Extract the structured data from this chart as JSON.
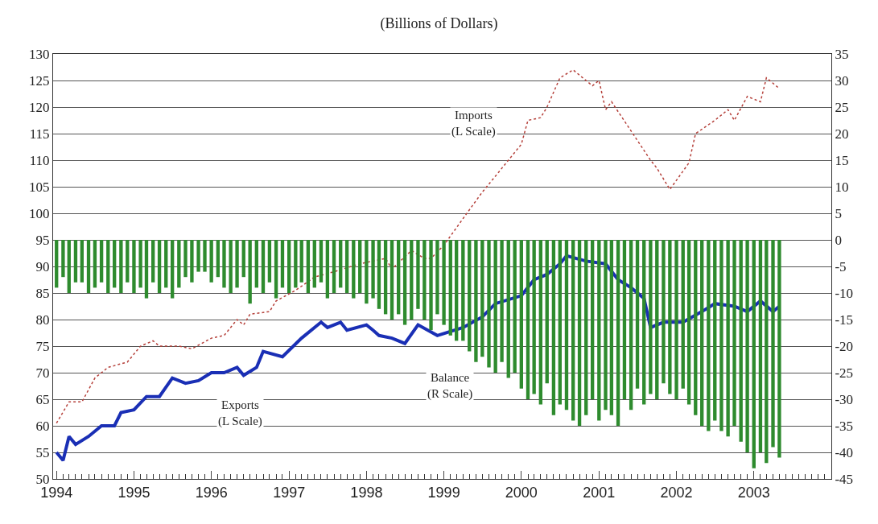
{
  "chart_data": {
    "type": "line",
    "title": "(Billions of Dollars)",
    "xlim": [
      "1993-12-16",
      "2004-01-01"
    ],
    "xticks": [
      "1994",
      "1995",
      "1996",
      "1997",
      "1998",
      "1999",
      "2000",
      "2001",
      "2002",
      "2003"
    ],
    "ylim": [
      50,
      130
    ],
    "yticks": [
      50,
      55,
      60,
      65,
      70,
      75,
      80,
      85,
      90,
      95,
      100,
      105,
      110,
      115,
      120,
      125,
      130
    ],
    "y2lim": [
      -45,
      35
    ],
    "y2ticks": [
      -45,
      -40,
      -35,
      -30,
      -25,
      -20,
      -15,
      -10,
      -5,
      0,
      5,
      10,
      15,
      20,
      25,
      30,
      35
    ],
    "grid": "y",
    "annotations": [
      "Imports\n(L Scale)",
      "Exports\n(L Scale)",
      "Balance\n(R Scale)"
    ],
    "series": [
      {
        "type": "bar",
        "axis": "y2",
        "color": "#2e8b2e",
        "x": [
          "1994-01",
          "1994-02",
          "1994-03",
          "1994-04",
          "1994-05",
          "1994-06",
          "1994-07",
          "1994-08",
          "1994-09",
          "1994-10",
          "1994-11",
          "1994-12",
          "1995-01",
          "1995-02",
          "1995-03",
          "1995-04",
          "1995-05",
          "1995-06",
          "1995-07",
          "1995-08",
          "1995-09",
          "1995-10",
          "1995-11",
          "1995-12",
          "1996-01",
          "1996-02",
          "1996-03",
          "1996-04",
          "1996-05",
          "1996-06",
          "1996-07",
          "1996-08",
          "1996-09",
          "1996-10",
          "1996-11",
          "1996-12",
          "1997-01",
          "1997-02",
          "1997-03",
          "1997-04",
          "1997-05",
          "1997-06",
          "1997-07",
          "1997-08",
          "1997-09",
          "1997-10",
          "1997-11",
          "1997-12",
          "1998-01",
          "1998-02",
          "1998-03",
          "1998-04",
          "1998-05",
          "1998-06",
          "1998-07",
          "1998-08",
          "1998-09",
          "1998-10",
          "1998-11",
          "1998-12",
          "1999-01",
          "1999-02",
          "1999-03",
          "1999-04",
          "1999-05",
          "1999-06",
          "1999-07",
          "1999-08",
          "1999-09",
          "1999-10",
          "1999-11",
          "1999-12",
          "2000-01",
          "2000-02",
          "2000-03",
          "2000-04",
          "2000-05",
          "2000-06",
          "2000-07",
          "2000-08",
          "2000-09",
          "2000-10",
          "2000-11",
          "2000-12",
          "2001-01",
          "2001-02",
          "2001-03",
          "2001-04",
          "2001-05",
          "2001-06",
          "2001-07",
          "2001-08",
          "2001-09",
          "2001-10",
          "2001-11",
          "2001-12",
          "2002-01",
          "2002-02",
          "2002-03",
          "2002-04",
          "2002-05",
          "2002-06",
          "2002-07",
          "2002-08",
          "2002-09",
          "2002-10",
          "2002-11",
          "2002-12",
          "2003-01",
          "2003-02",
          "2003-03",
          "2003-04",
          "2003-05"
        ],
        "values": [
          -9,
          -7,
          -10,
          -8,
          -8,
          -10,
          -9,
          -8,
          -10,
          -9,
          -10,
          -8,
          -10,
          -9,
          -11,
          -8,
          -10,
          -9,
          -11,
          -9,
          -7,
          -8,
          -6,
          -6,
          -8,
          -7,
          -9,
          -10,
          -9,
          -7,
          -12,
          -9,
          -10,
          -8,
          -11,
          -9,
          -10,
          -9,
          -8,
          -10,
          -9,
          -8,
          -11,
          -10,
          -9,
          -10,
          -11,
          -10,
          -12,
          -11,
          -13,
          -14,
          -15,
          -14,
          -16,
          -15,
          -13,
          -15,
          -17,
          -14,
          -16,
          -18,
          -19,
          -19,
          -21,
          -23,
          -22,
          -24,
          -25,
          -23,
          -26,
          -25,
          -28,
          -30,
          -29,
          -31,
          -27,
          -33,
          -31,
          -32,
          -34,
          -35,
          -33,
          -30,
          -34,
          -32,
          -33,
          -35,
          -30,
          -32,
          -28,
          -31,
          -29,
          -30,
          -27,
          -29,
          -30,
          -28,
          -31,
          -33,
          -35,
          -36,
          -34,
          -36,
          -37,
          -35,
          -38,
          -40,
          -43,
          -40,
          -42,
          -39,
          -41
        ]
      },
      {
        "color": "#b5403a",
        "line_style": "dotted",
        "x": [
          "1994-01",
          "1994-03",
          "1994-05",
          "1994-07",
          "1994-09",
          "1994-12",
          "1995-02",
          "1995-04",
          "1995-05",
          "1995-08",
          "1995-10",
          "1996-01",
          "1996-03",
          "1996-05",
          "1996-06",
          "1996-07",
          "1996-10",
          "1996-11",
          "1997-02",
          "1997-05",
          "1997-08",
          "1997-12",
          "1998-04",
          "1998-05",
          "1998-08",
          "1998-10",
          "1998-11",
          "1999-01",
          "1999-04",
          "1999-07",
          "1999-09",
          "2000-01",
          "2000-02",
          "2000-04",
          "2000-05",
          "2000-07",
          "2000-09",
          "2000-12",
          "2001-01",
          "2001-02",
          "2001-03",
          "2001-06",
          "2001-09",
          "2001-10",
          "2001-12",
          "2002-03",
          "2002-04",
          "2002-07",
          "2002-09",
          "2002-10",
          "2002-12",
          "2003-02",
          "2003-03",
          "2003-05"
        ],
        "values": [
          60.5,
          64.5,
          64.5,
          69,
          71,
          72,
          75,
          76,
          75,
          75,
          74.5,
          76.5,
          77,
          80,
          79,
          81,
          81.5,
          83.5,
          85.5,
          88,
          89,
          90.5,
          91.5,
          89.5,
          93,
          91.5,
          91.5,
          94,
          99,
          104,
          107,
          113,
          117.5,
          118,
          120,
          125.5,
          127,
          124,
          125,
          119.5,
          121,
          115.5,
          110,
          108.5,
          104.5,
          109.5,
          115,
          117.5,
          119.5,
          117.5,
          122,
          121,
          125.5,
          123.5
        ]
      },
      {
        "color": "#1a2fb5",
        "line_style": "solid",
        "x": [
          "1994-01",
          "1994-02",
          "1994-03",
          "1994-04",
          "1994-06",
          "1994-08",
          "1994-10",
          "1994-11",
          "1995-01",
          "1995-03",
          "1995-05",
          "1995-07",
          "1995-09",
          "1995-11",
          "1996-01",
          "1996-03",
          "1996-05",
          "1996-06",
          "1996-08",
          "1996-09",
          "1996-12",
          "1997-03",
          "1997-06",
          "1997-07",
          "1997-09",
          "1997-10",
          "1998-01",
          "1998-02",
          "1998-03",
          "1998-05",
          "1998-07",
          "1998-09",
          "1998-12",
          "1999-04",
          "1999-07",
          "1999-09",
          "2000-01",
          "2000-03",
          "2000-05",
          "2000-07",
          "2000-08",
          "2000-11",
          "2001-02",
          "2001-04",
          "2001-06",
          "2001-08",
          "2001-09",
          "2001-11",
          "2002-02",
          "2002-05",
          "2002-07",
          "2002-10",
          "2002-12",
          "2003-02",
          "2003-04",
          "2003-05"
        ],
        "values": [
          55,
          53.5,
          58,
          56.5,
          58,
          60,
          60,
          62.5,
          63,
          65.5,
          65.5,
          69,
          68,
          68.5,
          70,
          70,
          71,
          69.5,
          71,
          74,
          73,
          76.5,
          79.5,
          78.5,
          79.5,
          78,
          79,
          78,
          77,
          76.5,
          75.5,
          79,
          77,
          78.5,
          80.5,
          83,
          84.5,
          87.5,
          88.5,
          90.5,
          92,
          91,
          90.5,
          87.5,
          86,
          84,
          78.5,
          79.5,
          79.5,
          81.5,
          83,
          82.5,
          81.5,
          83.5,
          81.5,
          82.5
        ]
      }
    ]
  }
}
